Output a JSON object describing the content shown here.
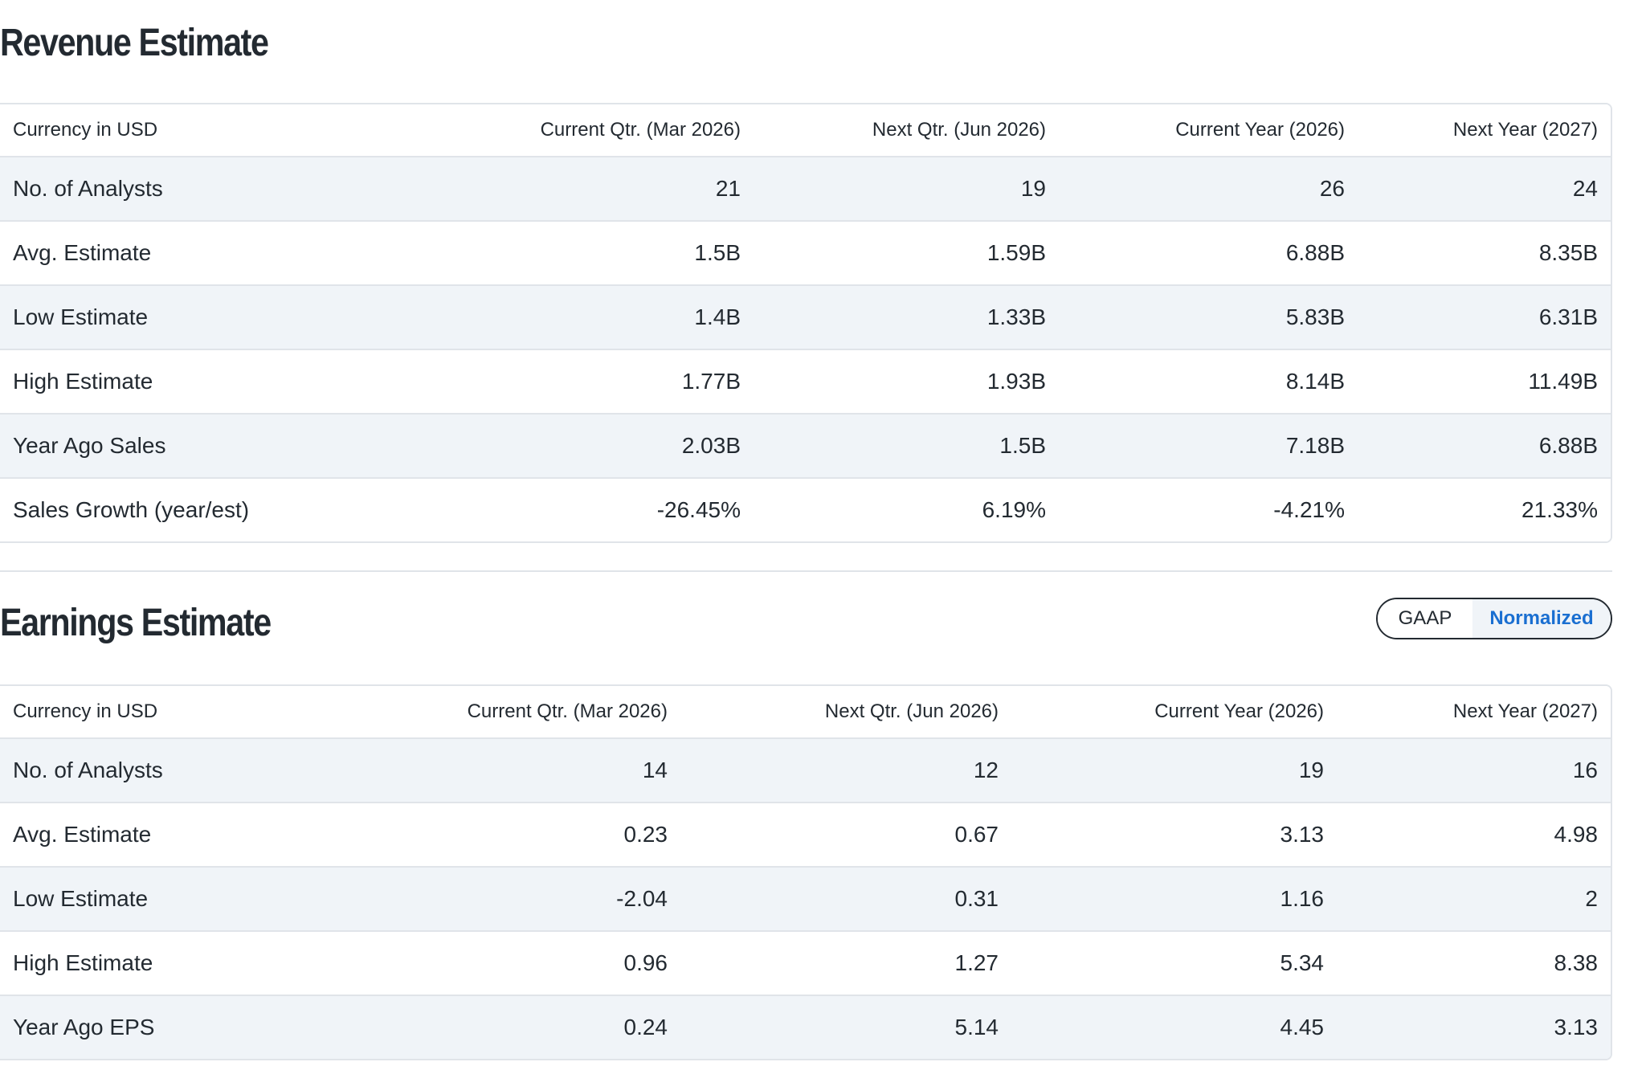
{
  "revenue": {
    "title": "Revenue Estimate",
    "columns": [
      "Currency in USD",
      "Current Qtr. (Mar 2026)",
      "Next Qtr. (Jun 2026)",
      "Current Year (2026)",
      "Next Year (2027)"
    ],
    "rows": [
      [
        "No. of Analysts",
        "21",
        "19",
        "26",
        "24"
      ],
      [
        "Avg. Estimate",
        "1.5B",
        "1.59B",
        "6.88B",
        "8.35B"
      ],
      [
        "Low Estimate",
        "1.4B",
        "1.33B",
        "5.83B",
        "6.31B"
      ],
      [
        "High Estimate",
        "1.77B",
        "1.93B",
        "8.14B",
        "11.49B"
      ],
      [
        "Year Ago Sales",
        "2.03B",
        "1.5B",
        "7.18B",
        "6.88B"
      ],
      [
        "Sales Growth (year/est)",
        "-26.45%",
        "6.19%",
        "-4.21%",
        "21.33%"
      ]
    ]
  },
  "earnings": {
    "title": "Earnings Estimate",
    "toggle": {
      "gaap_label": "GAAP",
      "normalized_label": "Normalized",
      "selected": "Normalized"
    },
    "columns": [
      "Currency in USD",
      "Current Qtr. (Mar 2026)",
      "Next Qtr. (Jun 2026)",
      "Current Year (2026)",
      "Next Year (2027)"
    ],
    "rows": [
      [
        "No. of Analysts",
        "14",
        "12",
        "19",
        "16"
      ],
      [
        "Avg. Estimate",
        "0.23",
        "0.67",
        "3.13",
        "4.98"
      ],
      [
        "Low Estimate",
        "-2.04",
        "0.31",
        "1.16",
        "2"
      ],
      [
        "High Estimate",
        "0.96",
        "1.27",
        "5.34",
        "8.38"
      ],
      [
        "Year Ago EPS",
        "0.24",
        "5.14",
        "4.45",
        "3.13"
      ]
    ]
  },
  "colors": {
    "text": "#232a31",
    "row_alt": "#f0f4f8",
    "border": "#e0e4e9",
    "accent": "#1a6fd1"
  }
}
